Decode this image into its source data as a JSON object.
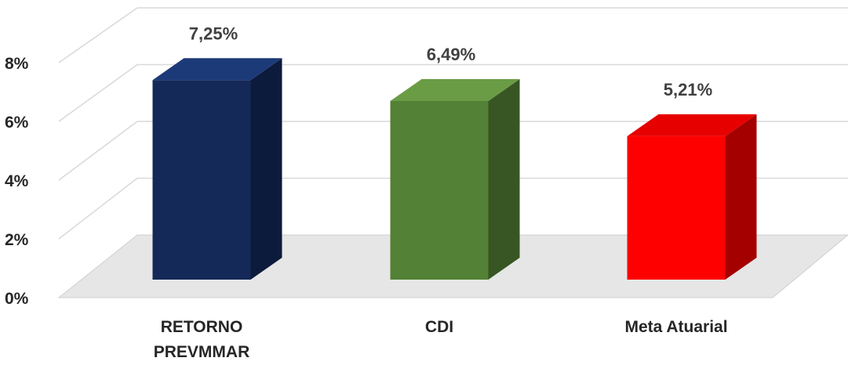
{
  "chart_data": {
    "type": "bar",
    "categories": [
      "RETORNO PREVMMAR",
      "CDI",
      "Meta Atuarial"
    ],
    "values": [
      7.25,
      6.49,
      5.21
    ],
    "value_labels": [
      "7,25%",
      "6,49%",
      "5,21%"
    ],
    "y_ticks": [
      "0%",
      "2%",
      "4%",
      "6%",
      "8%"
    ],
    "ylim": [
      0,
      8
    ],
    "grid": true,
    "legend": "none",
    "colors": {
      "RETORNO PREVMMAR": {
        "front": "#142957",
        "side": "#0c1a3c",
        "top": "#1d3a78"
      },
      "CDI": {
        "front": "#538135",
        "side": "#375623",
        "top": "#6a9c45"
      },
      "Meta Atuarial": {
        "front": "#ff0000",
        "side": "#a50000",
        "top": "#e60000"
      }
    },
    "floor_color": "#e6e6e6",
    "grid_color": "#d9d9d9"
  }
}
